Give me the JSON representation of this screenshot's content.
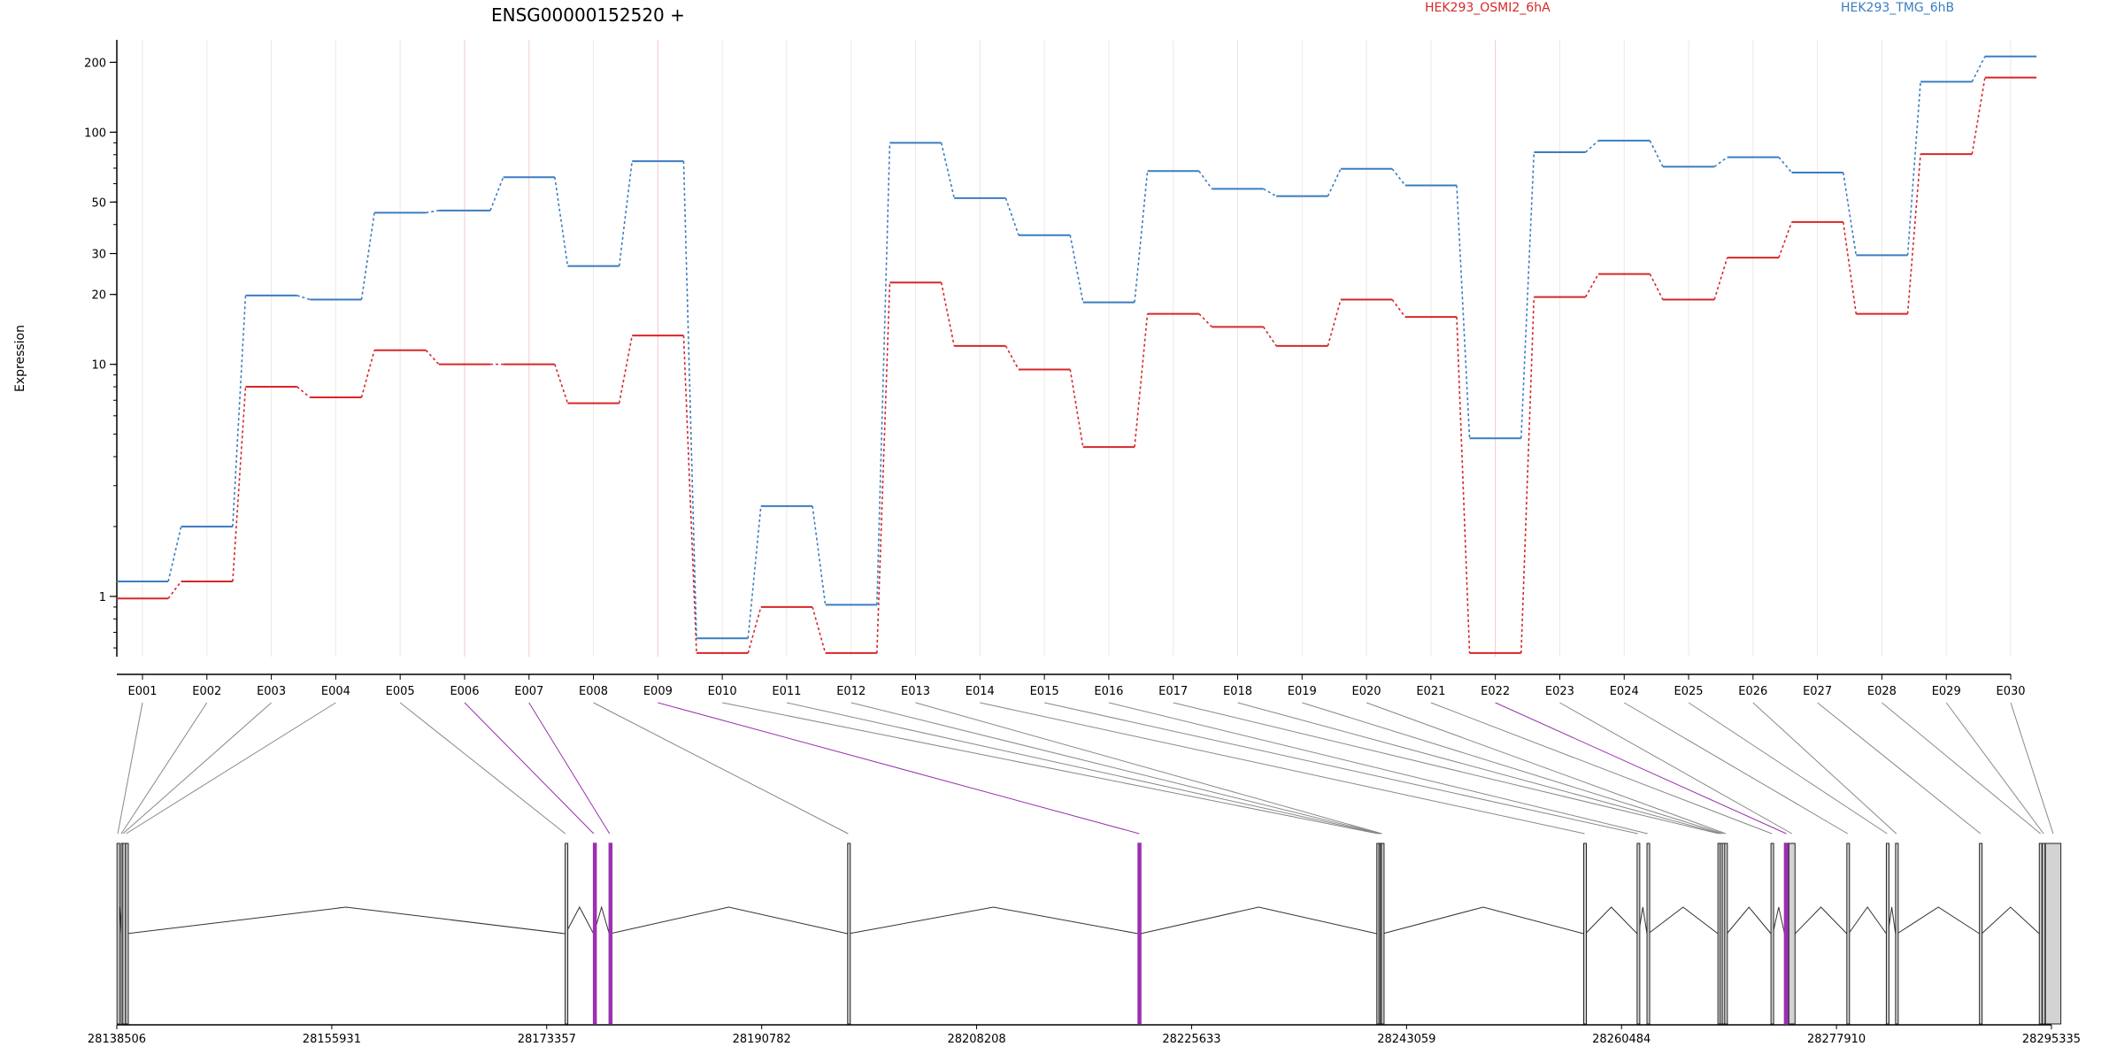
{
  "chart_data": {
    "type": "line",
    "title": "ENSG00000152520 +",
    "ylabel": "Expression",
    "xlabel": "",
    "y_scale": "log",
    "ylim": [
      0.55,
      250
    ],
    "y_ticks": [
      1,
      10,
      20,
      30,
      50,
      100,
      200
    ],
    "y_tick_labels": [
      "1",
      "10",
      "20",
      "30",
      "50",
      "100",
      "200"
    ],
    "categories": [
      "E001",
      "E002",
      "E003",
      "E004",
      "E005",
      "E006",
      "E007",
      "E008",
      "E009",
      "E010",
      "E011",
      "E012",
      "E013",
      "E014",
      "E015",
      "E016",
      "E017",
      "E018",
      "E019",
      "E020",
      "E021",
      "E022",
      "E023",
      "E024",
      "E025",
      "E026",
      "E027",
      "E028",
      "E029",
      "E030"
    ],
    "highlighted_exons": [
      "E006",
      "E007",
      "E009",
      "E022"
    ],
    "highlight_color": "#9b30b0",
    "legend_placement": "top-right",
    "series": [
      {
        "name": "HEK293_OSMI2_6hA",
        "color": "#d62728",
        "values": [
          0.98,
          1.16,
          8.0,
          7.2,
          11.5,
          10.0,
          10.0,
          6.8,
          13.3,
          0.57,
          0.9,
          0.57,
          22.5,
          12.0,
          9.5,
          4.4,
          16.5,
          14.5,
          12.0,
          19.0,
          16.0,
          0.57,
          19.5,
          24.5,
          19.0,
          28.8,
          41.0,
          16.5,
          80.5,
          172.0
        ]
      },
      {
        "name": "HEK293_TMG_6hB",
        "color": "#3a7dc0",
        "values": [
          1.16,
          2.0,
          19.8,
          19.0,
          45.0,
          46.0,
          64.0,
          26.5,
          75.0,
          0.66,
          2.45,
          0.92,
          90.0,
          52.0,
          36.0,
          18.5,
          68.0,
          57.0,
          53.0,
          69.5,
          59.0,
          4.8,
          82.0,
          92.0,
          71.0,
          78.0,
          67.0,
          29.5,
          165.0,
          212.0
        ]
      }
    ],
    "gene_model": {
      "strand": "+",
      "genomic_range": [
        28138506,
        28295335
      ],
      "axis_tick_labels": [
        "28138506",
        "28155931",
        "28173357",
        "28190782",
        "28208208",
        "28225633",
        "28243059",
        "28260484",
        "28277910",
        "28295335"
      ],
      "exon_starts": [
        28138520,
        28138860,
        28138990,
        28139220,
        28174850,
        28177150,
        28178420,
        28197750,
        28221300,
        28240650,
        28240820,
        28240940,
        28241020,
        28257420,
        28261750,
        28262550,
        28268300,
        28268480,
        28268650,
        28268850,
        28272600,
        28273700,
        28274050,
        28278750,
        28281950,
        28282700,
        28289500,
        28294350,
        28294600,
        28294850
      ],
      "exon_ends": [
        28138640,
        28138880,
        28139010,
        28139300,
        28174880,
        28177180,
        28178480,
        28197830,
        28221490,
        28240800,
        28240930,
        28241000,
        28241120,
        28257560,
        28261870,
        28262650,
        28268460,
        28268640,
        28268820,
        28269030,
        28272750,
        28274000,
        28274550,
        28278890,
        28282080,
        28282830,
        28289680,
        28294550,
        28294800,
        28296100
      ]
    }
  }
}
